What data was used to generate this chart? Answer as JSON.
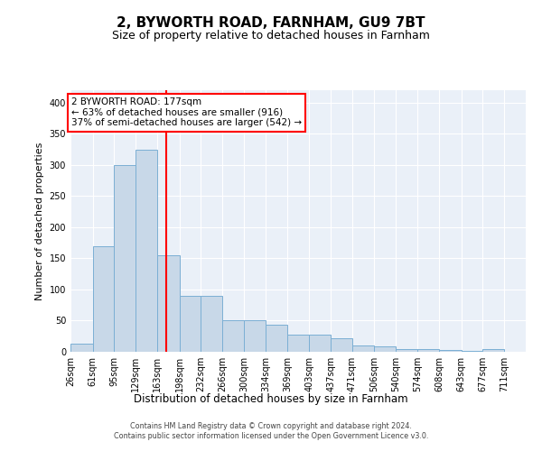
{
  "title1": "2, BYWORTH ROAD, FARNHAM, GU9 7BT",
  "title2": "Size of property relative to detached houses in Farnham",
  "xlabel": "Distribution of detached houses by size in Farnham",
  "ylabel": "Number of detached properties",
  "bin_edges": [
    26,
    61,
    95,
    129,
    163,
    198,
    232,
    266,
    300,
    334,
    369,
    403,
    437,
    471,
    506,
    540,
    574,
    608,
    643,
    677,
    711
  ],
  "bar_heights": [
    13,
    170,
    300,
    325,
    155,
    90,
    90,
    50,
    50,
    43,
    28,
    28,
    22,
    10,
    9,
    5,
    5,
    3,
    2,
    4
  ],
  "bar_color": "#c8d8e8",
  "bar_edgecolor": "#7bafd4",
  "redline_x": 177,
  "annotation_line1": "2 BYWORTH ROAD: 177sqm",
  "annotation_line2": "← 63% of detached houses are smaller (916)",
  "annotation_line3": "37% of semi-detached houses are larger (542) →",
  "ylim": [
    0,
    420
  ],
  "yticks": [
    0,
    50,
    100,
    150,
    200,
    250,
    300,
    350,
    400
  ],
  "background_color": "#eaf0f8",
  "footer_text": "Contains HM Land Registry data © Crown copyright and database right 2024.\nContains public sector information licensed under the Open Government Licence v3.0.",
  "title1_fontsize": 11,
  "title2_fontsize": 9,
  "xlabel_fontsize": 8.5,
  "ylabel_fontsize": 8,
  "tick_fontsize": 7,
  "ann_fontsize": 7.5
}
